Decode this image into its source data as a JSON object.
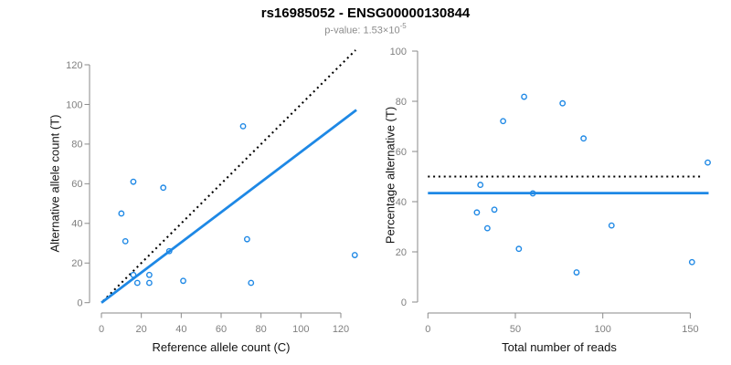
{
  "header": {
    "title": "rs16985052 - ENSG00000130844",
    "subtitle_base": "p-value: 1.53×10",
    "subtitle_exponent": "-5"
  },
  "colors": {
    "point_blue": "#1E88E5",
    "line_blue": "#1E88E5",
    "dashed_black": "#000000",
    "axis_gray": "#8A8A8A",
    "tick_label_gray": "#7F7F7F",
    "axis_title_black": "#111111",
    "title_black": "#000000",
    "subtitle_gray": "#8C8C8C",
    "background": "#FFFFFF"
  },
  "chart_data": [
    {
      "id": "left",
      "type": "scatter",
      "xlabel": "Reference allele count (C)",
      "ylabel": "Alternative allele count (T)",
      "xticks": [
        0,
        20,
        40,
        60,
        80,
        100,
        120
      ],
      "yticks": [
        0,
        20,
        40,
        60,
        80,
        100,
        120
      ],
      "xlim": [
        0,
        128
      ],
      "ylim": [
        0,
        128
      ],
      "grid": false,
      "legend": "none",
      "points": [
        [
          10,
          45
        ],
        [
          12,
          31
        ],
        [
          16,
          61
        ],
        [
          16,
          14
        ],
        [
          18,
          10
        ],
        [
          24,
          14
        ],
        [
          24,
          10
        ],
        [
          31,
          58
        ],
        [
          34,
          26
        ],
        [
          41,
          11
        ],
        [
          71,
          89
        ],
        [
          73,
          32
        ],
        [
          75,
          10
        ],
        [
          127,
          24
        ]
      ],
      "lines": [
        {
          "name": "identity-line",
          "style": "dotted",
          "color": "#000000",
          "x1": 0.8,
          "y1": 0.8,
          "x2": 127.4,
          "y2": 127.4
        },
        {
          "name": "regression-line",
          "style": "solid",
          "color": "#1E88E5",
          "x1": 0,
          "y1": 0,
          "x2": 127.8,
          "y2": 97.2
        }
      ]
    },
    {
      "id": "right",
      "type": "scatter",
      "xlabel": "Total number of reads",
      "ylabel": "Percentage alternative (T)",
      "xticks": [
        0,
        50,
        100,
        150
      ],
      "yticks": [
        0,
        20,
        40,
        60,
        80,
        100
      ],
      "xlim": [
        0,
        161
      ],
      "ylim": [
        0,
        100
      ],
      "grid": false,
      "legend": "none",
      "points": [
        [
          55,
          81.8
        ],
        [
          43,
          72.1
        ],
        [
          77,
          79.2
        ],
        [
          30,
          46.7
        ],
        [
          28,
          35.7
        ],
        [
          38,
          36.8
        ],
        [
          34,
          29.4
        ],
        [
          89,
          65.2
        ],
        [
          60,
          43.3
        ],
        [
          52,
          21.2
        ],
        [
          160,
          55.6
        ],
        [
          105,
          30.5
        ],
        [
          85,
          11.8
        ],
        [
          151,
          15.9
        ]
      ],
      "lines": [
        {
          "name": "fifty-percent-line",
          "style": "dotted",
          "color": "#000000",
          "x1": 0,
          "y1": 50,
          "x2": 156,
          "y2": 50
        },
        {
          "name": "mean-percentage-line",
          "style": "solid",
          "color": "#1E88E5",
          "x1": 0,
          "y1": 43.4,
          "x2": 160.5,
          "y2": 43.4
        }
      ]
    }
  ]
}
